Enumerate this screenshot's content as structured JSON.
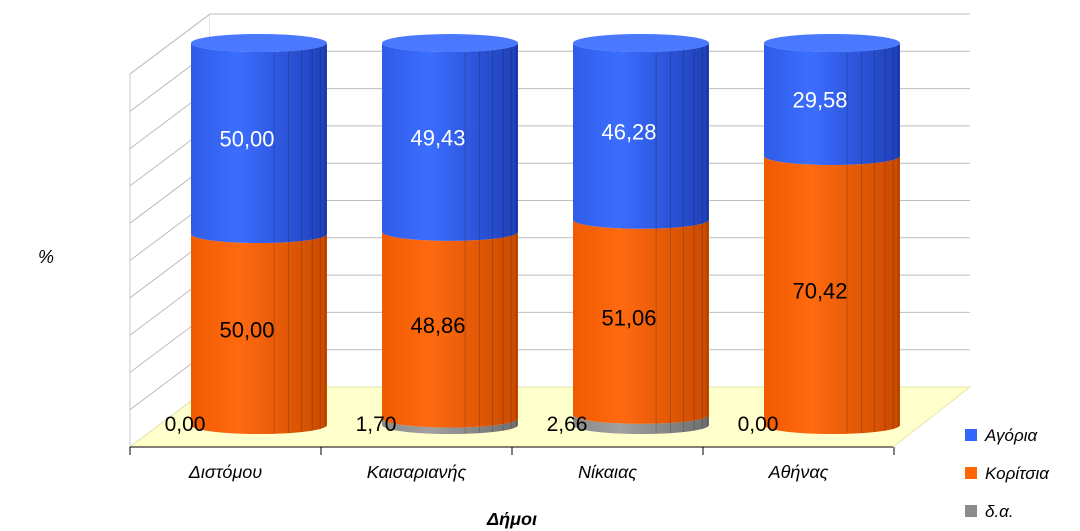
{
  "chart_data": {
    "type": "bar",
    "stacked": true,
    "percent_stacked": true,
    "style": "3d-cylinder",
    "categories": [
      "Διστόμου",
      "Καισαριανής",
      "Νίκαιας",
      "Αθήνας"
    ],
    "series": [
      {
        "name": "δ.α.",
        "color": "#8c8c8c",
        "values": [
          0.0,
          1.7,
          2.66,
          0.0
        ],
        "labels": [
          "0,00",
          "1,70",
          "2,66",
          "0,00"
        ]
      },
      {
        "name": "Κορίτσια",
        "color": "#ff6600",
        "values": [
          50.0,
          48.86,
          51.06,
          70.42
        ],
        "labels": [
          "50,00",
          "48,86",
          "51,06",
          "70,42"
        ]
      },
      {
        "name": "Αγόρια",
        "color": "#3366ff",
        "values": [
          50.0,
          49.43,
          46.28,
          29.58
        ],
        "labels": [
          "50,00",
          "49,43",
          "46,28",
          "29,58"
        ]
      }
    ],
    "legend_order": [
      "Αγόρια",
      "Κορίτσια",
      "δ.α."
    ],
    "xlabel": "Δήμοι",
    "ylabel": "%",
    "ylim": [
      0,
      100
    ],
    "grid": true,
    "legend_position": "bottom-right",
    "floor_color": "#ffffcc"
  }
}
